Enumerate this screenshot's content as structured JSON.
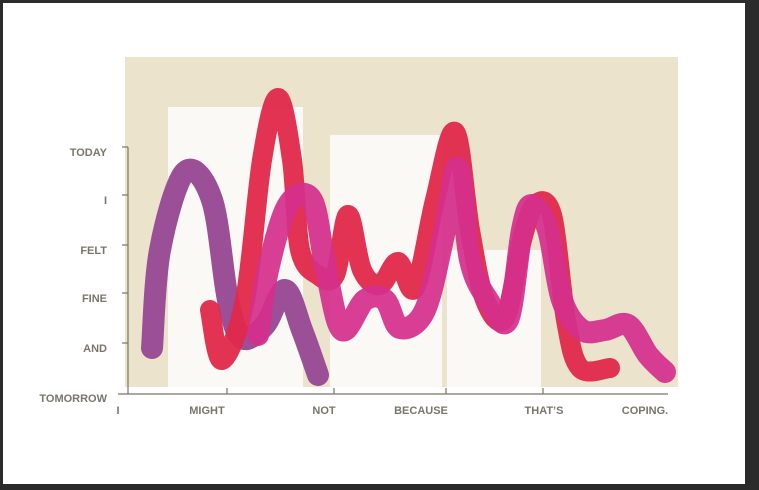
{
  "y_axis": {
    "labels": [
      "TODAY",
      "I",
      "FELT",
      "FINE",
      "AND",
      "TOMORROW"
    ]
  },
  "x_axis": {
    "labels": [
      "I",
      "MIGHT",
      "NOT",
      "BECAUSE",
      "THAT’S",
      "COPING."
    ]
  }
}
